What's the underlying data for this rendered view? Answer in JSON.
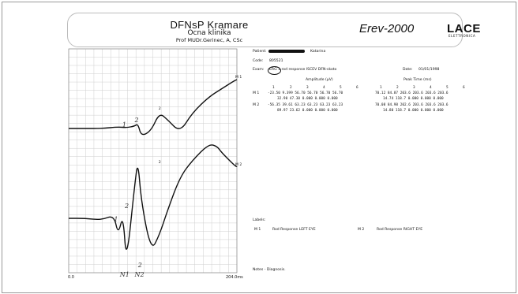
{
  "header": {
    "title": "DFNsP Kramare",
    "subtitle": "Ocna klinika",
    "author": "Prof MUDr.Gerinec, A, CSc",
    "device": "Erev-2000",
    "logo": "LACE",
    "logo_sub": "ELETTRONICA"
  },
  "patient": {
    "patient_label": "Patient:",
    "patient_value": "Katarina",
    "code_label": "Code:",
    "code_value": "805521",
    "exam_label": "Exam:",
    "exam_value": "ERG  1 rod response ISCEV DFN-skoto",
    "date_label": "Date:",
    "date_value": "01/01/1998"
  },
  "table": {
    "amp_header": "Amplitude (µV)",
    "time_header": "Peak Time (ms)",
    "cols": [
      "1",
      "2",
      "3",
      "4",
      "5",
      "6"
    ],
    "rows": [
      {
        "label": "M 1",
        "amp1": "-23.50  9.399  56.70  56.70  56.70  56.70",
        "amp2": "32.90  47.30  0.000  0.000  0.000",
        "t1": "70.12  84.87  203.6  203.6  203.6  203.6",
        "t2": "14.74  118.7  0.000  0.000  0.000"
      },
      {
        "label": "M 2",
        "amp1": "-56.35  39.61  63.23  63.23  63.23  63.23",
        "amp2": "89.97  23.62  0.000  0.000  0.000",
        "t1": "70.08  84.98  202.6  203.6  203.6  203.6",
        "t2": "14.80  118.7  0.000  0.000  0.000"
      }
    ]
  },
  "labels": {
    "title": "Labels:",
    "m1_tag": "M 1",
    "m1_text": "Rod Response LEFT EYE",
    "m2_tag": "M 2",
    "m2_text": "Rod Response RIGHT EYE"
  },
  "notes": "Notes - Diagnosis.",
  "chart_data": {
    "type": "line",
    "x_range": [
      0,
      204
    ],
    "x_tick_labels": [
      "0.0",
      "204.0ms"
    ],
    "grid": true,
    "series": [
      {
        "name": "M 1",
        "x": [
          0,
          20,
          40,
          60,
          70,
          80,
          84,
          88,
          100,
          110,
          120,
          135,
          150,
          170,
          185,
          200,
          204
        ],
        "y": [
          0,
          0,
          0,
          2,
          1,
          3,
          6,
          -10,
          -3,
          20,
          11,
          -5,
          20,
          40,
          50,
          60,
          62
        ]
      },
      {
        "name": "M 2",
        "x": [
          0,
          20,
          40,
          55,
          60,
          66,
          70,
          80,
          84,
          88,
          100,
          110,
          120,
          135,
          150,
          170,
          180,
          185,
          200,
          204
        ],
        "y": [
          0,
          0,
          -2,
          4,
          -20,
          5,
          -56,
          40,
          70,
          20,
          -40,
          -20,
          10,
          50,
          70,
          90,
          87,
          80,
          65,
          62
        ]
      }
    ],
    "series_tags": [
      "M 1",
      "M 2"
    ],
    "annotations": [
      "1",
      "2",
      "2",
      "1",
      "2",
      "2",
      "N1",
      "N2"
    ]
  }
}
